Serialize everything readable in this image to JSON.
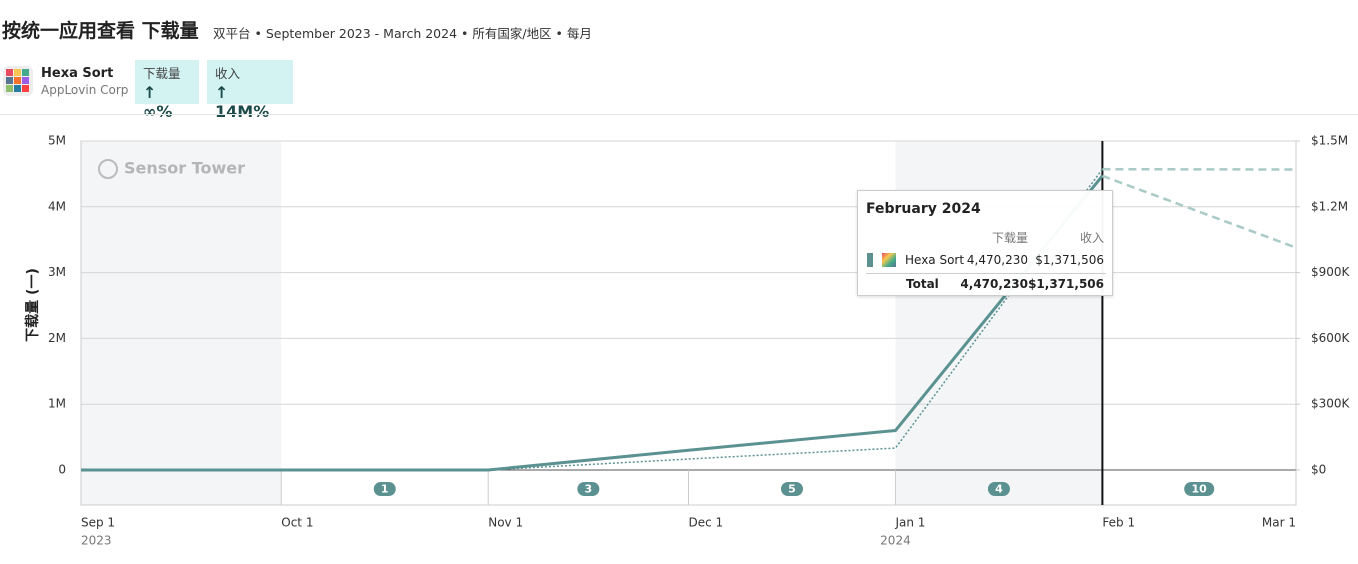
{
  "header": {
    "title": "按统一应用查看 下载量",
    "subtitle": "双平台 • September 2023 - March 2024 • 所有国家/地区 • 每月",
    "app": {
      "name": "Hexa Sort",
      "publisher": "AppLovin Corp"
    },
    "metrics": [
      {
        "label": "下载量",
        "value": "↑ ∞%"
      },
      {
        "label": "收入",
        "value": "↑ 14M%"
      }
    ]
  },
  "chart_data": {
    "type": "line",
    "watermark": "Sensor Tower",
    "ylabel": "下载量 (一)",
    "x": [
      "2023-09-01",
      "2023-10-01",
      "2023-11-01",
      "2023-12-01",
      "2024-01-01",
      "2024-02-01",
      "2024-03-01"
    ],
    "series": [
      {
        "name": "下载量",
        "color": "#5b9291",
        "values": [
          0,
          0,
          0,
          300000,
          600000,
          4470230,
          3380000
        ]
      },
      {
        "name": "收入",
        "color": "#5b9291",
        "axis": "y2",
        "values": [
          0,
          0,
          0,
          50000,
          100000,
          1371506,
          1370000
        ]
      }
    ],
    "projection_start": "2024-02-01",
    "projection_color": "#a9cac6",
    "xlim": [
      "2023-09-01",
      "2024-03-01"
    ],
    "xticks": [
      {
        "value": "2023-09-01",
        "label": "Sep 1"
      },
      {
        "value": "2023-10-01",
        "label": "Oct 1"
      },
      {
        "value": "2023-11-01",
        "label": "Nov 1"
      },
      {
        "value": "2023-12-01",
        "label": "Dec 1"
      },
      {
        "value": "2024-01-01",
        "label": "Jan 1"
      },
      {
        "value": "2024-02-01",
        "label": "Feb 1"
      },
      {
        "value": "2024-03-01",
        "label": "Mar 1"
      }
    ],
    "year_labels": [
      {
        "value": "2023-09-01",
        "label": "2023"
      },
      {
        "value": "2024-01-01",
        "label": "2024"
      }
    ],
    "ylim": [
      0,
      5000000
    ],
    "yticks": [
      0,
      {
        "value": 1000000,
        "label": "1M"
      },
      {
        "value": 2000000,
        "label": "2M"
      },
      {
        "value": 3000000,
        "label": "3M"
      },
      {
        "value": 4000000,
        "label": "4M"
      },
      {
        "value": 5000000,
        "label": "5M"
      }
    ],
    "y2lim": [
      0,
      1500000
    ],
    "y2ticks": [
      {
        "value": 0,
        "label": "$0"
      },
      {
        "value": 300000,
        "label": "$300K"
      },
      {
        "value": 600000,
        "label": "$600K"
      },
      {
        "value": 900000,
        "label": "$900K"
      },
      {
        "value": 1200000,
        "label": "$1.2M"
      },
      {
        "value": 1500000,
        "label": "$1.5M"
      }
    ],
    "grid": true,
    "shaded_ranges": [
      [
        "2023-09-01",
        "2023-10-01"
      ],
      [
        "2024-01-01",
        "2024-02-01"
      ]
    ],
    "events": [
      {
        "start": "2023-10-01",
        "end": "2023-11-01",
        "count": 1
      },
      {
        "start": "2023-11-01",
        "end": "2023-12-01",
        "count": 3
      },
      {
        "start": "2023-12-01",
        "end": "2024-01-01",
        "count": 5
      },
      {
        "start": "2024-01-01",
        "end": "2024-02-01",
        "count": 4
      },
      {
        "start": "2024-02-01",
        "end": "2024-03-01",
        "count": 10
      }
    ],
    "hover_x": "2024-02-01",
    "tooltip": {
      "title": "February 2024",
      "columns": [
        "下载量",
        "收入"
      ],
      "rows": [
        {
          "name": "Hexa Sort",
          "values": [
            "4,470,230",
            "$1,371,506"
          ]
        }
      ],
      "total": {
        "name": "Total",
        "values": [
          "4,470,230",
          "$1,371,506"
        ]
      }
    }
  }
}
